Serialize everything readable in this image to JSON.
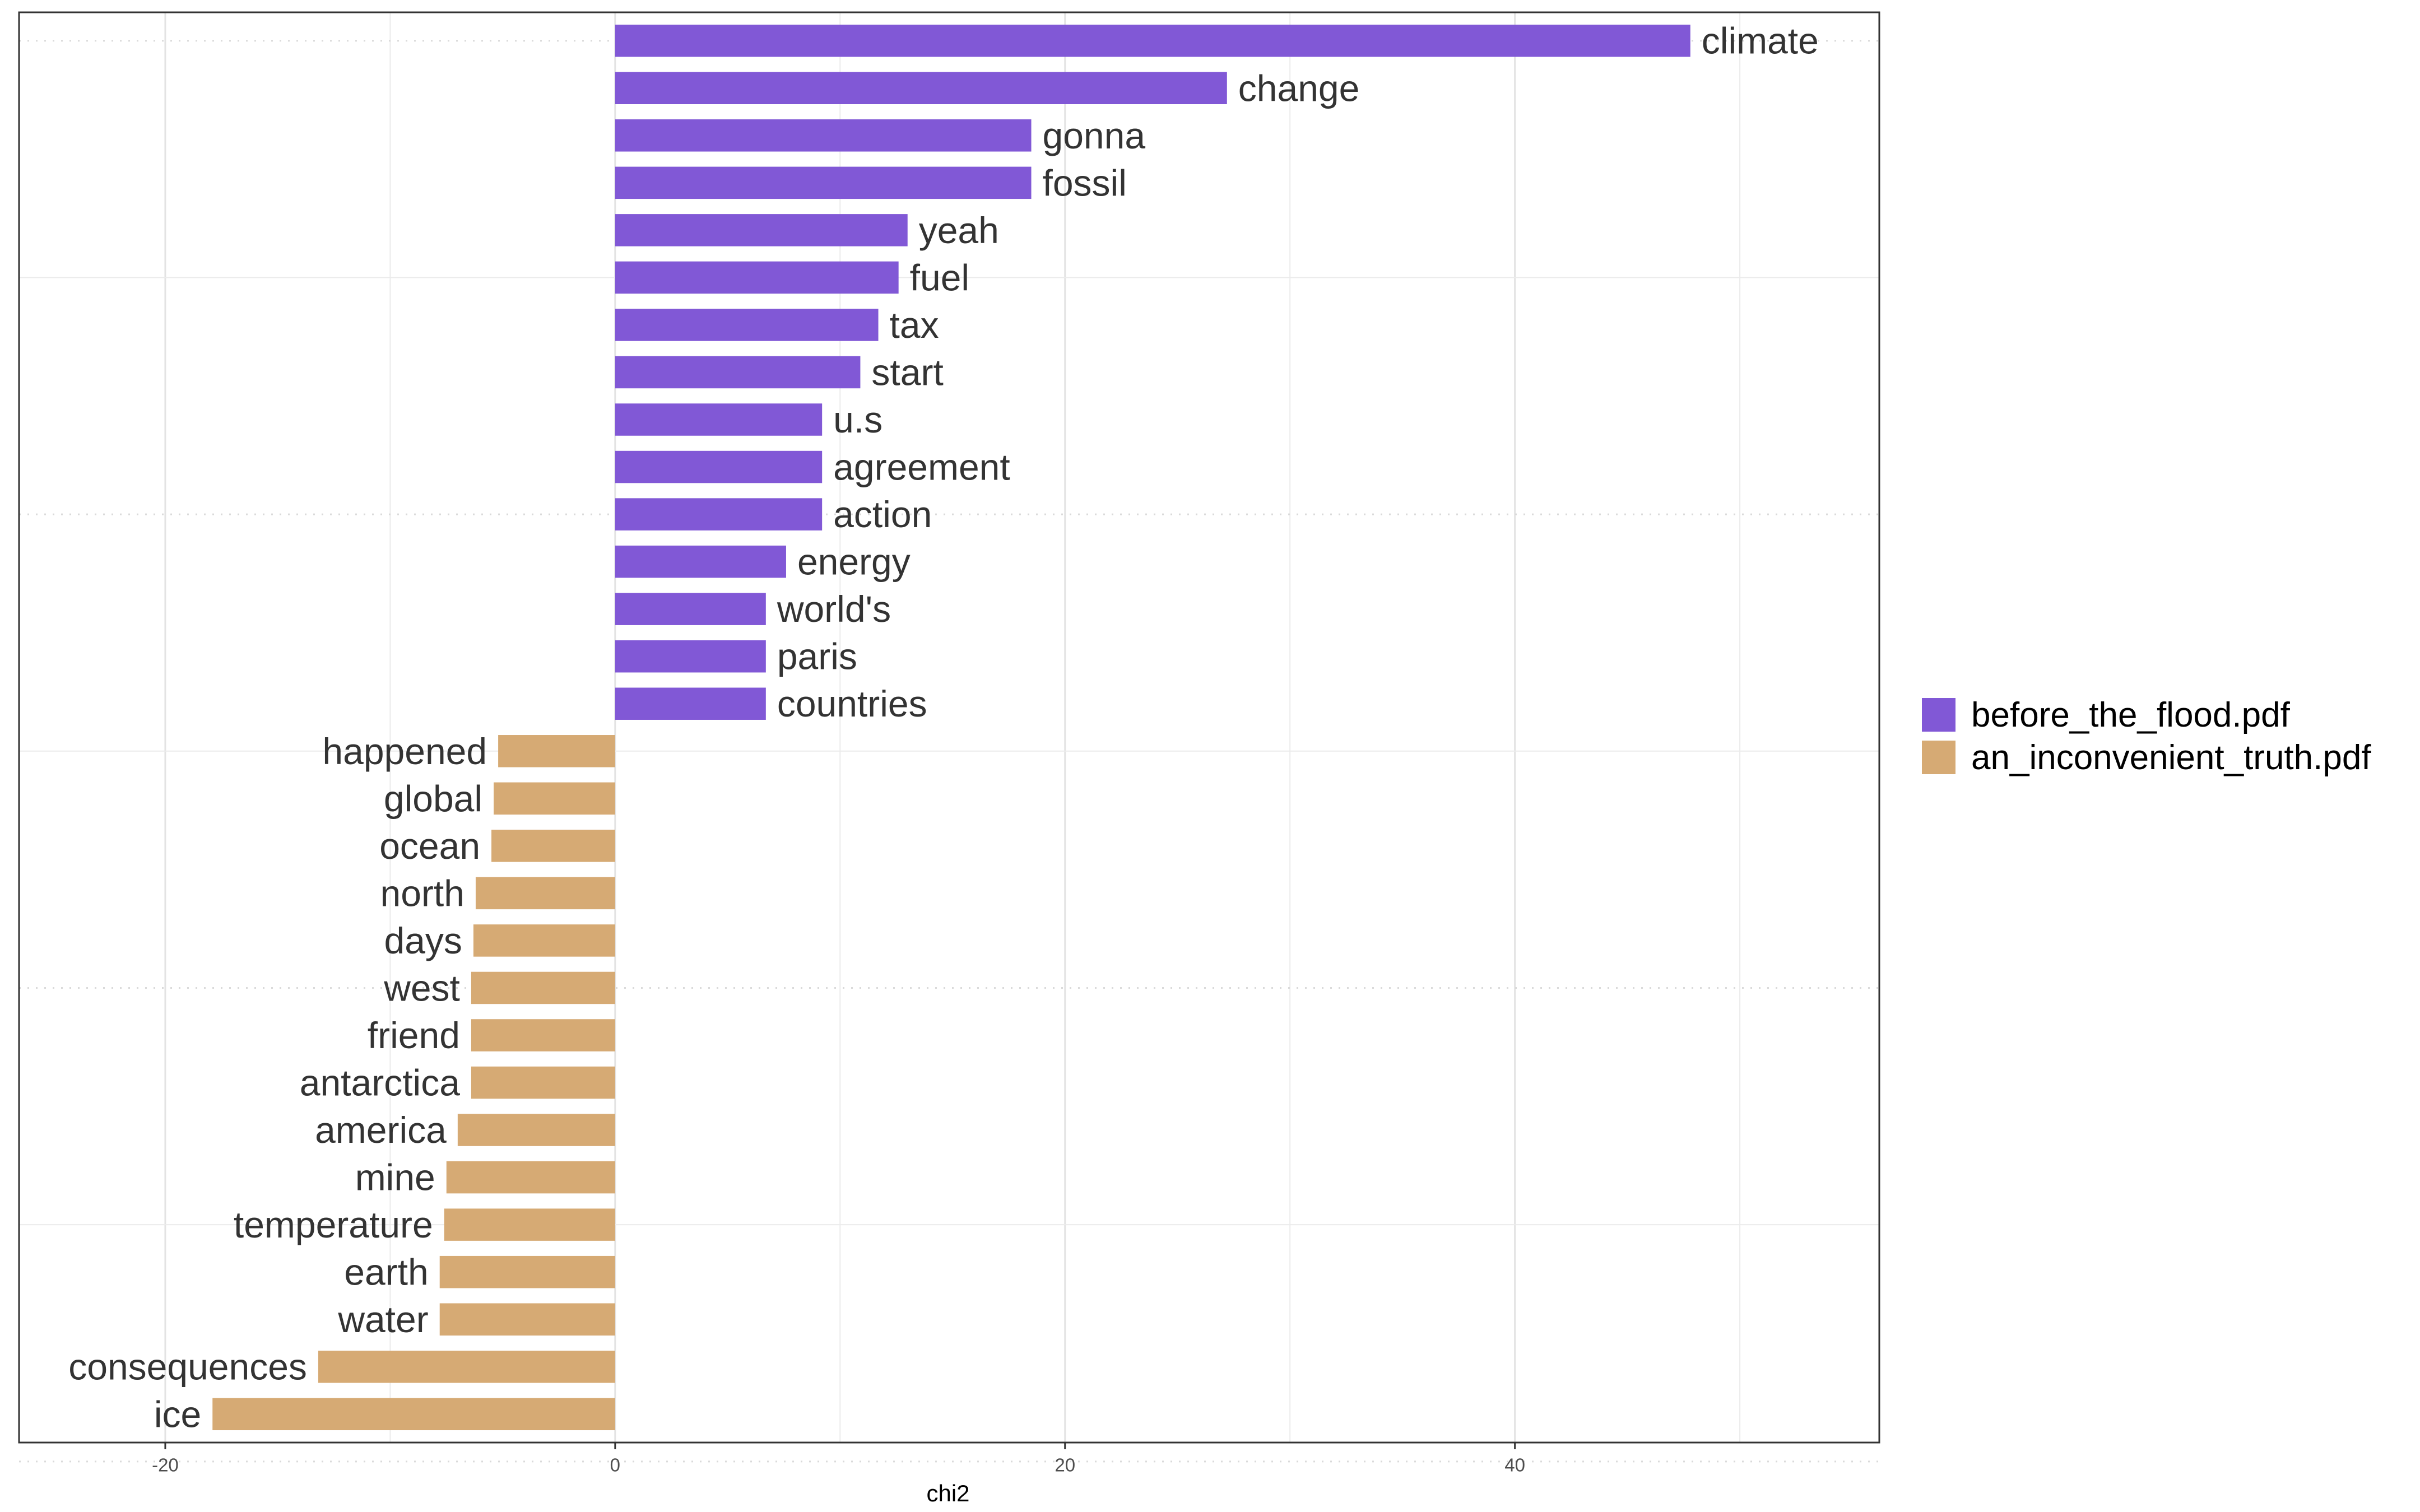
{
  "chart_data": {
    "type": "bar",
    "orientation": "horizontal",
    "xlabel": "chi2",
    "ylabel": "",
    "xlim": [
      -26.5,
      56.2
    ],
    "xticks": [
      -20,
      0,
      20,
      40
    ],
    "grid": true,
    "legend_position": "right",
    "series": [
      {
        "name": "before_the_flood.pdf",
        "color": "#8158D6",
        "categories": [
          "climate",
          "change",
          "gonna",
          "fossil",
          "yeah",
          "fuel",
          "tax",
          "start",
          "u.s",
          "agreement",
          "action",
          "energy",
          "world's",
          "paris",
          "countries"
        ],
        "values": [
          47.8,
          27.2,
          18.5,
          18.5,
          13.0,
          12.6,
          11.7,
          10.9,
          9.2,
          9.2,
          9.2,
          7.6,
          6.7,
          6.7,
          6.7
        ]
      },
      {
        "name": "an_inconvenient_truth.pdf",
        "color": "#D6AA74",
        "categories": [
          "happened",
          "global",
          "ocean",
          "north",
          "days",
          "west",
          "friend",
          "antarctica",
          "america",
          "mine",
          "temperature",
          "earth",
          "water",
          "consequences",
          "ice"
        ],
        "values": [
          -5.2,
          -5.4,
          -5.5,
          -6.2,
          -6.3,
          -6.4,
          -6.4,
          -6.4,
          -7.0,
          -7.5,
          -7.6,
          -7.8,
          -7.8,
          -13.2,
          -17.9
        ]
      }
    ]
  }
}
